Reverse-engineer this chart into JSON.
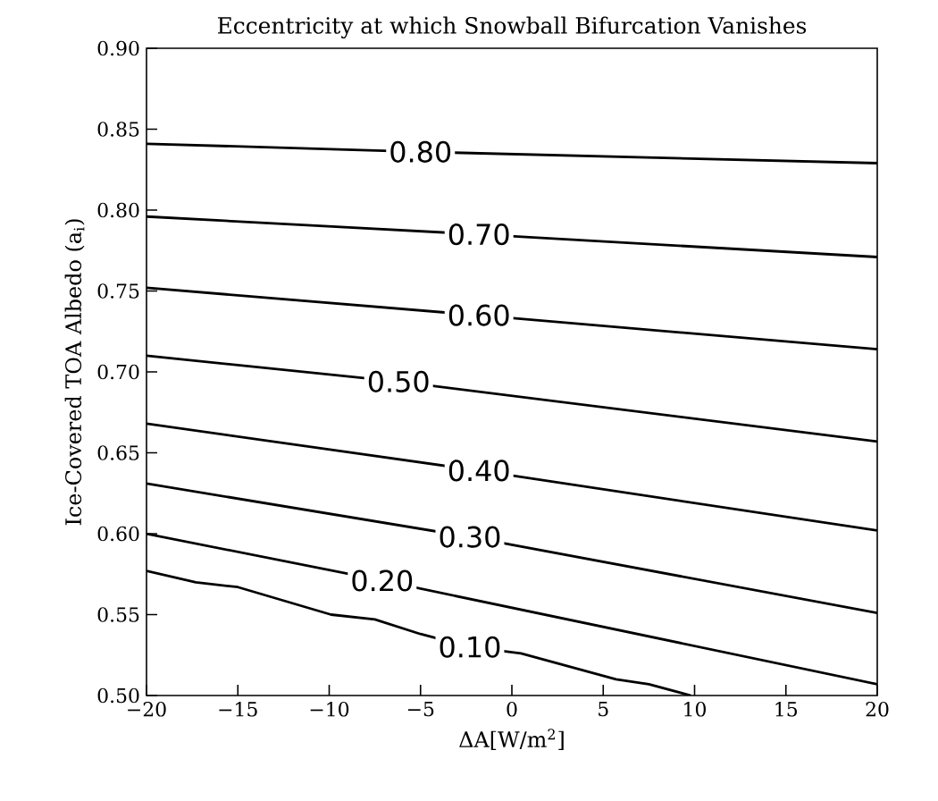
{
  "chart_data": {
    "type": "line",
    "title": "Eccentricity at which Snowball Bifurcation Vanishes",
    "xlabel": "ΔA[W/m$^{2}$]",
    "ylabel": "Ice-Covered TOA Albedo (a$_{i}$)",
    "xlim": [
      -20,
      20
    ],
    "ylim": [
      0.5,
      0.9
    ],
    "xticks": [
      {
        "value": -20,
        "label": "−20"
      },
      {
        "value": -15,
        "label": "−15"
      },
      {
        "value": -10,
        "label": "−10"
      },
      {
        "value": -5,
        "label": "−5"
      },
      0,
      5,
      10,
      15,
      20
    ],
    "yticks": [
      {
        "value": 0.5,
        "label": "0.50"
      },
      {
        "value": 0.55,
        "label": "0.55"
      },
      {
        "value": 0.6,
        "label": "0.60"
      },
      {
        "value": 0.65,
        "label": "0.65"
      },
      {
        "value": 0.7,
        "label": "0.70"
      },
      {
        "value": 0.75,
        "label": "0.75"
      },
      {
        "value": 0.8,
        "label": "0.80"
      },
      {
        "value": 0.85,
        "label": "0.85"
      },
      {
        "value": 0.9,
        "label": "0.90"
      }
    ],
    "marker": "none",
    "line_style": "solid",
    "series": [
      {
        "color": "#000000",
        "x": [
          -20,
          -5,
          20
        ],
        "values": [
          0.841,
          0.836,
          0.829
        ]
      },
      {
        "color": "#000000",
        "x": [
          -20,
          -1.8,
          20
        ],
        "values": [
          0.796,
          0.785,
          0.771
        ]
      },
      {
        "color": "#000000",
        "x": [
          -20,
          -1.8,
          20
        ],
        "values": [
          0.752,
          0.735,
          0.714
        ]
      },
      {
        "color": "#000000",
        "x": [
          -20,
          -6.2,
          20
        ],
        "values": [
          0.71,
          0.694,
          0.657
        ]
      },
      {
        "color": "#000000",
        "x": [
          -20,
          -1.8,
          20
        ],
        "values": [
          0.668,
          0.639,
          0.602
        ]
      },
      {
        "color": "#000000",
        "x": [
          -20,
          -2.3,
          20
        ],
        "values": [
          0.631,
          0.598,
          0.551
        ]
      },
      {
        "color": "#000000",
        "x": [
          -20,
          -7.1,
          20
        ],
        "values": [
          0.6,
          0.571,
          0.507
        ]
      },
      {
        "color": "#000000",
        "x": [
          -20,
          -17.3,
          -15,
          -9.9,
          -7.5,
          -5,
          -2.3,
          0.5,
          5.7,
          7.5,
          9.8
        ],
        "values": [
          0.577,
          0.57,
          0.567,
          0.55,
          0.547,
          0.538,
          0.53,
          0.526,
          0.51,
          0.507,
          0.5
        ]
      }
    ],
    "annotations": [
      {
        "text": "0.80",
        "x": -5,
        "y": 0.836
      },
      {
        "text": "0.70",
        "x": -1.8,
        "y": 0.785
      },
      {
        "text": "0.60",
        "x": -1.8,
        "y": 0.735
      },
      {
        "text": "0.50",
        "x": -6.2,
        "y": 0.694
      },
      {
        "text": "0.40",
        "x": -1.8,
        "y": 0.639
      },
      {
        "text": "0.30",
        "x": -2.3,
        "y": 0.598
      },
      {
        "text": "0.20",
        "x": -7.1,
        "y": 0.571
      },
      {
        "text": "0.10",
        "x": -2.3,
        "y": 0.53
      }
    ]
  }
}
